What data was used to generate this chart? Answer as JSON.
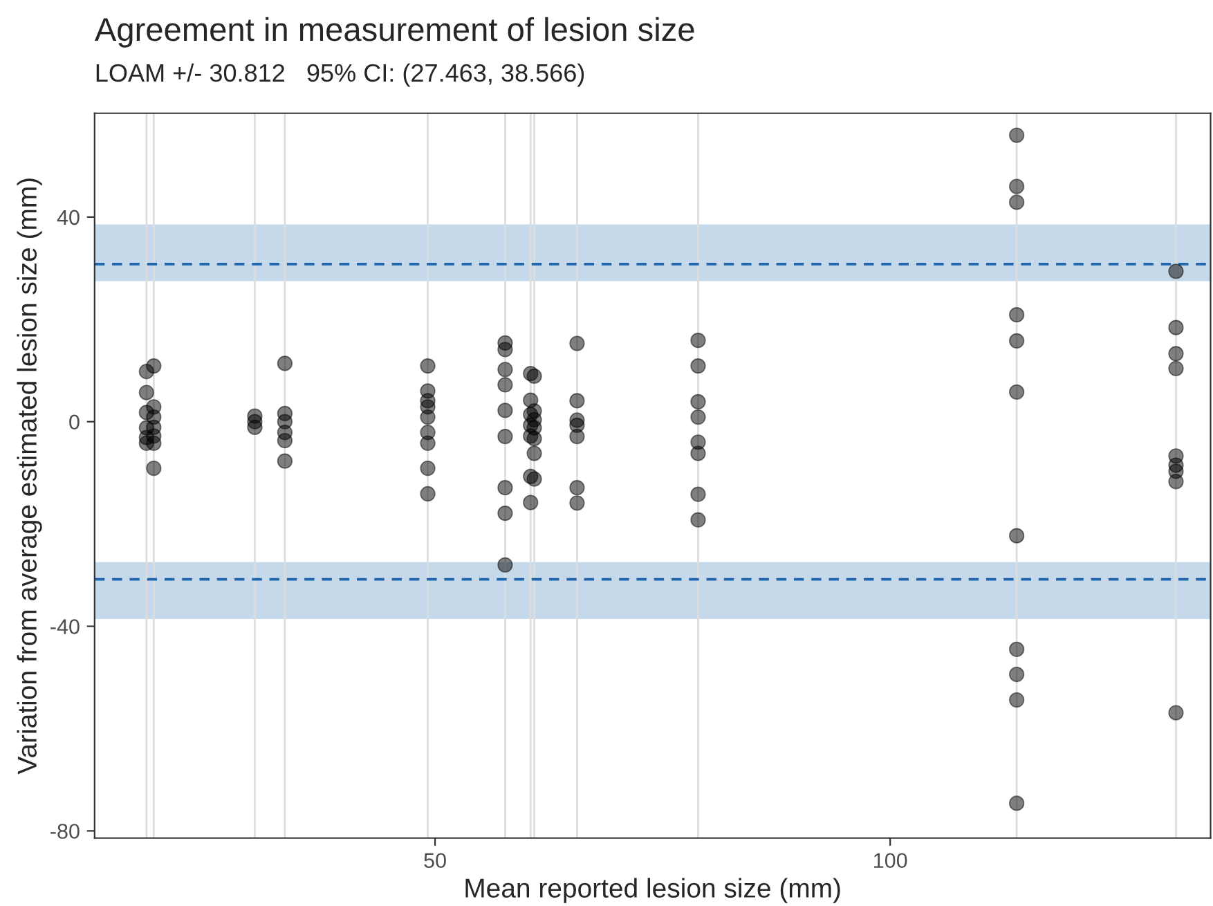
{
  "chart_data": {
    "type": "scatter",
    "title": "Agreement in measurement of lesion size",
    "subtitle": "LOAM +/- 30.812   95% CI: (27.463, 38.566)",
    "xlabel": "Mean reported lesion size (mm)",
    "ylabel": "Variation from average estimated lesion size (mm)",
    "series": [
      {
        "color": "#000000",
        "x": [
          18.3,
          18.3,
          18.3,
          18.3,
          18.3,
          18.3,
          19.1,
          19.1,
          19.1,
          19.1,
          19.1,
          19.1,
          19.1,
          30.2,
          30.2,
          30.2,
          33.5,
          33.5,
          33.5,
          33.5,
          33.5,
          33.5,
          49.2,
          49.2,
          49.2,
          49.2,
          49.2,
          49.2,
          49.2,
          49.2,
          49.2,
          57.7,
          57.7,
          57.7,
          57.7,
          57.7,
          57.7,
          57.7,
          57.7,
          57.7,
          60.5,
          60.5,
          60.5,
          60.5,
          60.5,
          60.5,
          60.5,
          60.9,
          60.9,
          60.9,
          60.9,
          60.9,
          60.9,
          60.9,
          65.6,
          65.6,
          65.6,
          65.6,
          65.6,
          65.6,
          65.6,
          78.9,
          78.9,
          78.9,
          78.9,
          78.9,
          78.9,
          78.9,
          78.9,
          113.9,
          113.9,
          113.9,
          113.9,
          113.9,
          113.9,
          113.9,
          113.9,
          113.9,
          113.9,
          113.9,
          131.4,
          131.4,
          131.4,
          131.4,
          131.4,
          131.4,
          131.4,
          131.4,
          131.4
        ],
        "values": [
          9.8,
          5.7,
          1.8,
          -1.2,
          -3.1,
          -4.2,
          10.9,
          2.9,
          0.9,
          -1.1,
          -2.8,
          -4.2,
          -9.1,
          1.1,
          0,
          -1.1,
          11.4,
          1.6,
          0,
          -2.1,
          -3.7,
          -7.7,
          10.9,
          6.0,
          4.1,
          2.9,
          0.9,
          -2.1,
          -4.2,
          -9.1,
          -14.1,
          15.4,
          14.1,
          10.2,
          7.2,
          2.2,
          -2.9,
          -12.9,
          -17.9,
          -28.0,
          9.4,
          4.2,
          1.4,
          -0.7,
          -2.8,
          -10.7,
          -15.8,
          8.9,
          2.1,
          0.4,
          -1.2,
          -3.3,
          -6.2,
          -11.2,
          15.3,
          4.1,
          0.3,
          -0.7,
          -2.9,
          -12.9,
          -15.9,
          15.9,
          10.9,
          3.9,
          0.9,
          -4.0,
          -6.2,
          -14.2,
          -19.2,
          56.0,
          46.0,
          42.9,
          20.9,
          15.8,
          5.8,
          -22.3,
          -44.5,
          -49.4,
          -54.4,
          -74.6,
          29.4,
          18.4,
          13.3,
          10.4,
          -6.7,
          -8.5,
          -9.7,
          -11.7,
          -56.9
        ]
      }
    ],
    "marker": "circle",
    "grid": false,
    "legend": false,
    "xlim": [
      12.6,
      135.2
    ],
    "ylim": [
      -81.4,
      60.3
    ],
    "xticks": [
      50,
      100
    ],
    "yticks": [
      -80,
      -40,
      0,
      40
    ],
    "bands": [
      {
        "axis": "y",
        "from": 27.463,
        "to": 38.566,
        "color": "#c6d9ea"
      },
      {
        "axis": "y",
        "from": -38.566,
        "to": -27.463,
        "color": "#c6d9ea"
      }
    ],
    "ref_lines": [
      {
        "axis": "y",
        "value": 30.812,
        "color": "#2166ac",
        "line_style": "dashed"
      },
      {
        "axis": "y",
        "value": -30.812,
        "color": "#2166ac",
        "line_style": "dashed"
      },
      {
        "axis": "x",
        "value": 18.3,
        "color": "#dddddd"
      },
      {
        "axis": "x",
        "value": 19.1,
        "color": "#dddddd"
      },
      {
        "axis": "x",
        "value": 30.2,
        "color": "#dddddd"
      },
      {
        "axis": "x",
        "value": 33.5,
        "color": "#dddddd"
      },
      {
        "axis": "x",
        "value": 49.2,
        "color": "#dddddd"
      },
      {
        "axis": "x",
        "value": 57.7,
        "color": "#dddddd"
      },
      {
        "axis": "x",
        "value": 60.5,
        "color": "#dddddd"
      },
      {
        "axis": "x",
        "value": 60.9,
        "color": "#dddddd"
      },
      {
        "axis": "x",
        "value": 65.6,
        "color": "#dddddd"
      },
      {
        "axis": "x",
        "value": 78.9,
        "color": "#dddddd"
      },
      {
        "axis": "x",
        "value": 113.9,
        "color": "#dddddd"
      },
      {
        "axis": "x",
        "value": 131.4,
        "color": "#dddddd"
      }
    ]
  }
}
